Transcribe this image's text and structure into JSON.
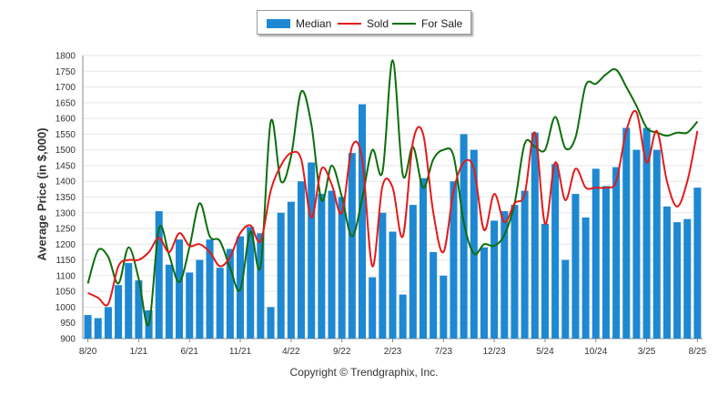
{
  "legend": {
    "median_label": "Median",
    "sold_label": "Sold",
    "forsale_label": "For Sale"
  },
  "copyright": "Copyright © Trendgraphix, Inc.",
  "colors": {
    "median": "#1e88d2",
    "sold": "#e21b1b",
    "forsale": "#0b6e0b",
    "grid": "#e6e6e6"
  },
  "chart_data": {
    "type": "bar",
    "title": "",
    "xlabel": "",
    "ylabel": "Average Price (in $,000)",
    "ylim": [
      900,
      1800
    ],
    "yticks": [
      900,
      950,
      1000,
      1050,
      1100,
      1150,
      1200,
      1250,
      1300,
      1350,
      1400,
      1450,
      1500,
      1550,
      1600,
      1650,
      1700,
      1750,
      1800
    ],
    "grid": true,
    "legend_position": "top-center",
    "x_tick_labels": [
      {
        "index": 0,
        "label": "8/20"
      },
      {
        "index": 5,
        "label": "1/21"
      },
      {
        "index": 10,
        "label": "6/21"
      },
      {
        "index": 15,
        "label": "11/21"
      },
      {
        "index": 20,
        "label": "4/22"
      },
      {
        "index": 25,
        "label": "9/22"
      },
      {
        "index": 30,
        "label": "2/23"
      },
      {
        "index": 35,
        "label": "7/23"
      },
      {
        "index": 40,
        "label": "12/23"
      },
      {
        "index": 45,
        "label": "5/24"
      },
      {
        "index": 50,
        "label": "10/24"
      },
      {
        "index": 55,
        "label": "3/25"
      },
      {
        "index": 60,
        "label": "8/25"
      }
    ],
    "series": [
      {
        "name": "Median",
        "kind": "bar",
        "values": [
          975,
          965,
          1000,
          1070,
          1140,
          1085,
          990,
          1305,
          1135,
          1215,
          1110,
          1150,
          1215,
          1125,
          1185,
          1225,
          1255,
          1235,
          1000,
          1300,
          1335,
          1400,
          1460,
          1360,
          1370,
          1350,
          1490,
          1645,
          1095,
          1300,
          1240,
          1040,
          1325,
          1410,
          1175,
          1100,
          1400,
          1550,
          1500,
          1190,
          1275,
          1305,
          1325,
          1370,
          1555,
          1265,
          1455,
          1150,
          1360,
          1285,
          1440,
          1385,
          1445,
          1570,
          1500,
          1570,
          1500,
          1320,
          1270,
          1280,
          1380
        ]
      },
      {
        "name": "Sold",
        "kind": "line",
        "values": [
          1045,
          1030,
          1010,
          1130,
          1150,
          1150,
          1175,
          1220,
          1175,
          1235,
          1195,
          1200,
          1175,
          1130,
          1160,
          1235,
          1260,
          1210,
          1370,
          1450,
          1490,
          1470,
          1285,
          1440,
          1390,
          1300,
          1510,
          1470,
          1130,
          1385,
          1380,
          1225,
          1525,
          1550,
          1300,
          1175,
          1370,
          1460,
          1440,
          1245,
          1360,
          1270,
          1330,
          1360,
          1555,
          1265,
          1460,
          1340,
          1440,
          1380,
          1380,
          1380,
          1400,
          1560,
          1620,
          1460,
          1560,
          1400,
          1320,
          1400,
          1560
        ]
      },
      {
        "name": "For Sale",
        "kind": "line",
        "values": [
          1075,
          1180,
          1160,
          1075,
          1190,
          1090,
          945,
          1250,
          1165,
          1080,
          1190,
          1330,
          1225,
          1210,
          1125,
          1055,
          1240,
          1130,
          1590,
          1400,
          1480,
          1685,
          1580,
          1340,
          1450,
          1350,
          1225,
          1345,
          1500,
          1430,
          1785,
          1420,
          1510,
          1380,
          1470,
          1500,
          1480,
          1270,
          1170,
          1200,
          1195,
          1230,
          1330,
          1520,
          1510,
          1500,
          1605,
          1505,
          1540,
          1705,
          1710,
          1740,
          1755,
          1700,
          1640,
          1570,
          1555,
          1545,
          1555,
          1555,
          1590
        ]
      }
    ]
  }
}
